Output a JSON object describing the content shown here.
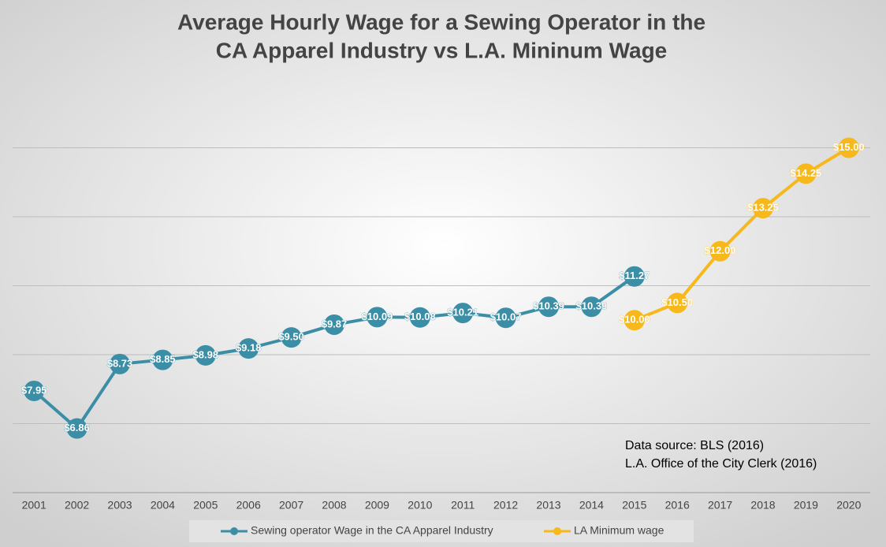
{
  "chart_data": {
    "type": "line",
    "title": [
      "Average Hourly Wage for a Sewing Operator in the",
      "CA Apparel Industry vs L.A. Mininum Wage"
    ],
    "categories": [
      "2001",
      "2002",
      "2003",
      "2004",
      "2005",
      "2006",
      "2007",
      "2008",
      "2009",
      "2010",
      "2011",
      "2012",
      "2013",
      "2014",
      "2015",
      "2016",
      "2017",
      "2018",
      "2019",
      "2020"
    ],
    "series": [
      {
        "name": "Sewing operator Wage in the CA Apparel Industry",
        "color": "#3b8ea5",
        "values": [
          7.95,
          6.86,
          8.73,
          8.85,
          8.98,
          9.18,
          9.5,
          9.87,
          10.09,
          10.08,
          10.21,
          10.07,
          10.39,
          10.39,
          11.27,
          null,
          null,
          null,
          null,
          null
        ],
        "value_labels": [
          "$7.95",
          "$6.86",
          "$8.73",
          "$8.85",
          "$8.98",
          "$9.18",
          "$9.50",
          "$9.87",
          "$10.09",
          "$10.08",
          "$10.21",
          "$10.07",
          "$10.39",
          "$10.39",
          "$11.27",
          null,
          null,
          null,
          null,
          null
        ]
      },
      {
        "name": "LA Minimum wage",
        "color": "#f7b81b",
        "values": [
          null,
          null,
          null,
          null,
          null,
          null,
          null,
          null,
          null,
          null,
          null,
          null,
          null,
          null,
          10.0,
          10.5,
          12.0,
          13.25,
          14.25,
          15.0
        ],
        "value_labels": [
          null,
          null,
          null,
          null,
          null,
          null,
          null,
          null,
          null,
          null,
          null,
          null,
          null,
          null,
          "$10.00",
          "$10.50",
          "$12.00",
          "$13.25",
          "$14.25",
          "$15.00"
        ]
      }
    ],
    "ylim": [
      5,
      17
    ],
    "yticks": [
      7,
      9,
      11,
      13,
      15
    ],
    "grid": true,
    "annotations": [
      "Data source: BLS (2016)",
      "L.A. Office of the City Clerk (2016)"
    ]
  }
}
